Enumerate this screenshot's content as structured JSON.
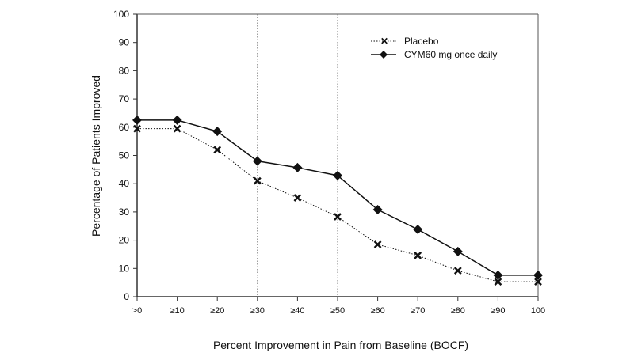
{
  "chart_data": {
    "type": "line",
    "title": "",
    "xlabel": "Percent Improvement in Pain from Baseline (BOCF)",
    "ylabel": "Percentage of Patients Improved",
    "categories": [
      ">0",
      "≥10",
      "≥20",
      "≥30",
      "≥40",
      "≥50",
      "≥60",
      "≥70",
      "≥80",
      "≥90",
      "100"
    ],
    "ylim": [
      0,
      100
    ],
    "yticks": [
      "0",
      "10",
      "20",
      "30",
      "40",
      "50",
      "60",
      "70",
      "80",
      "90",
      "100"
    ],
    "reference_lines_at": [
      "≥30",
      "≥50"
    ],
    "legend_position": "top-right",
    "series": [
      {
        "name": "Placebo",
        "marker": "x",
        "line": "dotted",
        "values": [
          59.5,
          59.5,
          52,
          41,
          35,
          28.3,
          18.5,
          14.6,
          9.2,
          5.3,
          5.3
        ]
      },
      {
        "name": "CYM60 mg once daily",
        "marker": "diamond",
        "line": "solid",
        "values": [
          62.5,
          62.5,
          58.5,
          48,
          45.7,
          42.9,
          30.8,
          23.8,
          16,
          7.6,
          7.6
        ]
      }
    ],
    "colors": {
      "axis": "#333333",
      "series": "#111111"
    }
  }
}
